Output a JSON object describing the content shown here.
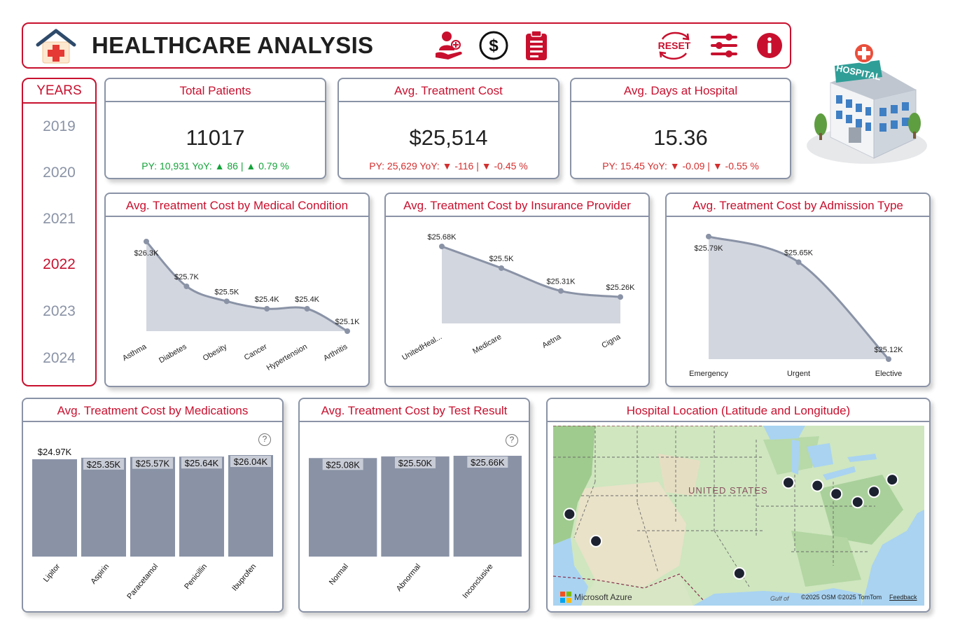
{
  "header": {
    "title": "HEALTHCARE ANALYSIS",
    "icons": [
      "patient-care-icon",
      "dollar-icon",
      "clipboard-icon",
      "reset-icon",
      "filter-sliders-icon",
      "info-icon"
    ],
    "reset_label": "RESET"
  },
  "hospital_sign": "HOSPITAL",
  "years": {
    "title": "YEARS",
    "items": [
      "2019",
      "2020",
      "2021",
      "2022",
      "2023",
      "2024"
    ],
    "selected": "2022"
  },
  "kpis": [
    {
      "title": "Total Patients",
      "value": "11017",
      "py_label": "PY: 10,931 YoY:",
      "delta": "▲ 86",
      "sep": "|",
      "pct": "▲ 0.79 %",
      "trend": "up"
    },
    {
      "title": "Avg. Treatment Cost",
      "value": "$25,514",
      "py_label": "PY: 25,629 YoY:",
      "delta": "▼ -116",
      "sep": "|",
      "pct": "▼ -0.45 %",
      "trend": "down"
    },
    {
      "title": "Avg. Days at Hospital",
      "value": "15.36",
      "py_label": "PY: 15.45 YoY:",
      "delta": "▼ -0.09",
      "sep": "|",
      "pct": "▼ -0.55 %",
      "trend": "down"
    }
  ],
  "colors": {
    "accent": "#c8102e",
    "series": "#8a93a6",
    "area": "#d2d6df",
    "up": "#14a33a",
    "down": "#d32f2f"
  },
  "charts": {
    "condition": {
      "title": "Avg. Treatment Cost by Medical Condition",
      "chart_data": {
        "type": "area",
        "categories": [
          "Asthma",
          "Diabetes",
          "Obesity",
          "Cancer",
          "Hypertension",
          "Arthritis"
        ],
        "values": [
          26.3,
          25.7,
          25.5,
          25.4,
          25.4,
          25.1
        ],
        "labels": [
          "$26.3K",
          "$25.7K",
          "$25.5K",
          "$25.4K",
          "$25.4K",
          "$25.1K"
        ],
        "unit": "K"
      }
    },
    "insurance": {
      "title": "Avg. Treatment Cost by Insurance Provider",
      "chart_data": {
        "type": "area",
        "categories": [
          "UnitedHeal...",
          "Medicare",
          "Aetna",
          "Cigna"
        ],
        "values": [
          25.68,
          25.5,
          25.31,
          25.26
        ],
        "labels": [
          "$25.68K",
          "$25.5K",
          "$25.31K",
          "$25.26K"
        ],
        "unit": "K"
      }
    },
    "admission": {
      "title": "Avg. Treatment Cost by Admission Type",
      "chart_data": {
        "type": "area",
        "categories": [
          "Emergency",
          "Urgent",
          "Elective"
        ],
        "values": [
          25.79,
          25.65,
          25.12
        ],
        "labels": [
          "$25.79K",
          "$25.65K",
          "$25.12K"
        ],
        "unit": "K"
      }
    },
    "medications": {
      "title": "Avg. Treatment Cost by Medications",
      "chart_data": {
        "type": "bar",
        "categories": [
          "Lipitor",
          "Aspirin",
          "Paracetamol",
          "Penicillin",
          "Ibuprofen"
        ],
        "values": [
          24.97,
          25.35,
          25.57,
          25.64,
          26.04
        ],
        "labels": [
          "$24.97K",
          "$25.35K",
          "$25.57K",
          "$25.64K",
          "$26.04K"
        ],
        "unit": "K"
      }
    },
    "testresult": {
      "title": "Avg. Treatment Cost by Test Result",
      "chart_data": {
        "type": "bar",
        "categories": [
          "Normal",
          "Abnormal",
          "Inconclusive"
        ],
        "values": [
          25.08,
          25.5,
          25.66
        ],
        "labels": [
          "$25.08K",
          "$25.50K",
          "$25.66K"
        ],
        "unit": "K"
      }
    }
  },
  "map": {
    "title": "Hospital Location (Latitude and Longitude)",
    "country_label": "UNITED STATES",
    "gulf_label": "Gulf of",
    "brand": "Microsoft Azure",
    "credit": "©2025 OSM  ©2025 TomTom",
    "feedback": "Feedback",
    "points": [
      {
        "lat": 41.9,
        "lon": -87.6
      },
      {
        "lat": 41.5,
        "lon": -83.0
      },
      {
        "lat": 40.4,
        "lon": -80.0
      },
      {
        "lat": 39.3,
        "lon": -76.6
      },
      {
        "lat": 40.7,
        "lon": -74.0
      },
      {
        "lat": 42.3,
        "lon": -71.1
      },
      {
        "lat": 37.7,
        "lon": -122.4
      },
      {
        "lat": 34.1,
        "lon": -118.2
      },
      {
        "lat": 29.8,
        "lon": -95.4
      }
    ]
  }
}
